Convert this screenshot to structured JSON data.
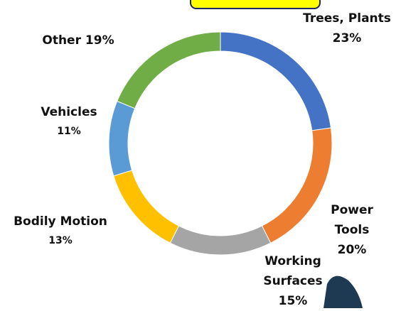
{
  "chart_data": {
    "type": "donut",
    "categories": [
      "Trees, Plants",
      "Power Tools",
      "Working Surfaces",
      "Bodily Motion",
      "Vehicles",
      "Other"
    ],
    "values": [
      23,
      20,
      15,
      13,
      11,
      19
    ],
    "value_labels": [
      "23%",
      "20%",
      "15%",
      "13%",
      "11%",
      "19%"
    ],
    "colors": [
      "#4472c4",
      "#ed7d31",
      "#a5a5a5",
      "#ffc000",
      "#5b9bd5",
      "#70ad47"
    ]
  }
}
